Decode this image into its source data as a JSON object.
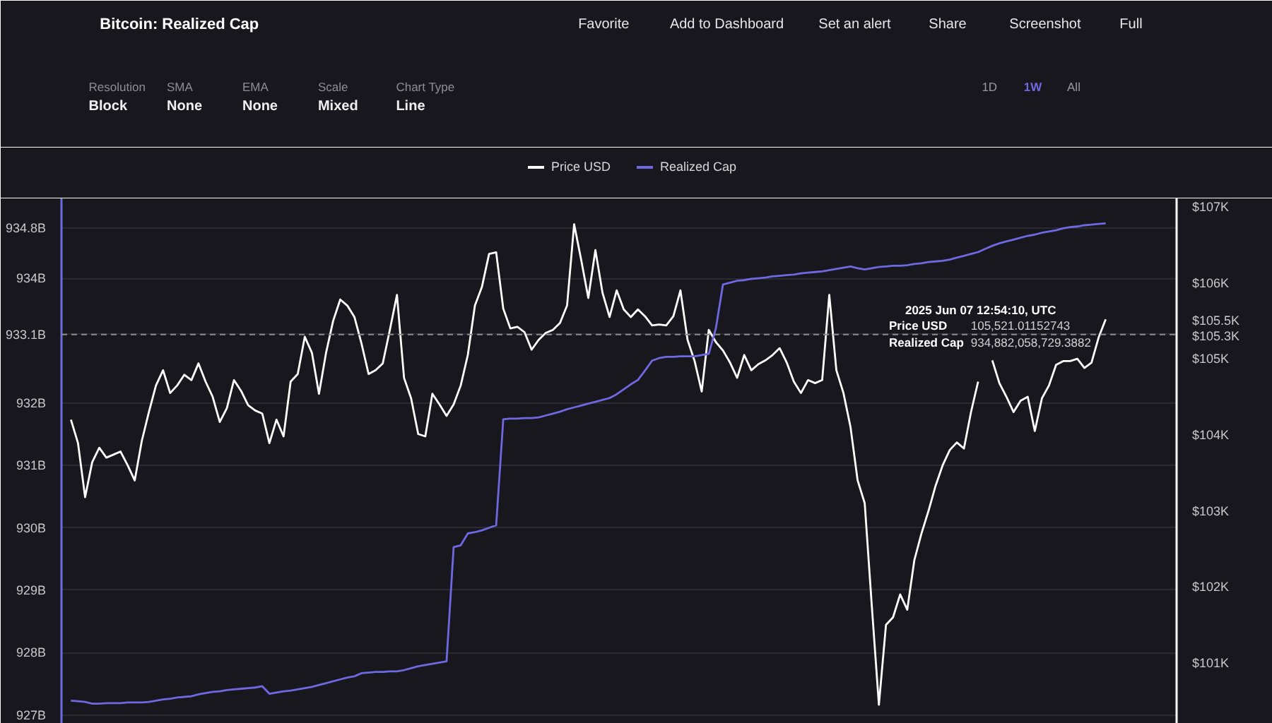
{
  "chart_data": {
    "type": "line",
    "title": "Bitcoin: Realized Cap",
    "categories": [
      null,
      null,
      null,
      null,
      null,
      null,
      null,
      null,
      null,
      null,
      null,
      null,
      null,
      null,
      null,
      null,
      null,
      null,
      null,
      null,
      null,
      null,
      null,
      null,
      null,
      null,
      null,
      null,
      null,
      null,
      null,
      null,
      null,
      null,
      null,
      null,
      null,
      null,
      null,
      null,
      null,
      null,
      null,
      null,
      null,
      null,
      null,
      null,
      null,
      null,
      null,
      null,
      null,
      null,
      null,
      null,
      null,
      null,
      null,
      null,
      null,
      null,
      null,
      null,
      null,
      null,
      null,
      null,
      null,
      null,
      null,
      null,
      null,
      null,
      null,
      null,
      null,
      null,
      null,
      null,
      null,
      null,
      null,
      null,
      null,
      null,
      null,
      null,
      null,
      null,
      null,
      null,
      null,
      null,
      null,
      null,
      null,
      null,
      null,
      null,
      null,
      null,
      null,
      null,
      null,
      null,
      null,
      null,
      null,
      null,
      null,
      null,
      null,
      null,
      null,
      null,
      null,
      null,
      null,
      null,
      null,
      null,
      null,
      null,
      null,
      null,
      null,
      null,
      null,
      null,
      null,
      null,
      null,
      null,
      null,
      null,
      null,
      null,
      null,
      null,
      null,
      null,
      null,
      null,
      null,
      null,
      null
    ],
    "series": [
      {
        "name": "Price USD",
        "color": "#ffffff",
        "axis": "y2",
        "values": [
          104.2,
          103.89,
          103.18,
          103.64,
          103.83,
          103.7,
          103.74,
          103.78,
          103.6,
          103.4,
          103.92,
          104.3,
          104.65,
          104.85,
          104.55,
          104.65,
          104.79,
          104.72,
          104.94,
          104.7,
          104.5,
          104.17,
          104.35,
          104.72,
          104.58,
          104.39,
          104.32,
          104.28,
          103.89,
          104.2,
          103.98,
          104.7,
          104.8,
          105.29,
          105.08,
          104.54,
          105.08,
          105.5,
          105.78,
          105.7,
          105.55,
          105.2,
          104.8,
          104.85,
          104.94,
          105.38,
          105.84,
          104.75,
          104.48,
          104.01,
          103.98,
          104.54,
          104.4,
          104.25,
          104.4,
          104.65,
          105.05,
          105.7,
          105.95,
          106.38,
          106.4,
          105.66,
          105.4,
          105.42,
          105.35,
          105.12,
          105.25,
          105.34,
          105.38,
          105.47,
          105.7,
          106.77,
          106.3,
          105.8,
          106.43,
          105.87,
          105.55,
          105.9,
          105.65,
          105.55,
          105.65,
          105.56,
          105.44,
          105.45,
          105.44,
          105.56,
          105.9,
          105.25,
          104.97,
          104.57,
          105.38,
          105.22,
          105.11,
          104.95,
          104.75,
          105.05,
          104.85,
          104.93,
          104.98,
          105.05,
          105.14,
          104.95,
          104.7,
          104.55,
          104.72,
          104.68,
          104.72,
          105.84,
          104.85,
          104.55,
          104.1,
          103.4,
          103.1,
          101.75,
          100.45,
          101.5,
          101.6,
          101.9,
          101.7,
          102.35,
          102.7,
          103.0,
          103.33,
          103.6,
          103.8,
          103.9,
          103.82,
          104.3,
          104.7,
          null,
          104.98,
          104.68,
          104.5,
          104.3,
          104.45,
          104.5,
          104.05,
          104.48,
          104.65,
          104.92,
          104.97,
          104.97,
          105.0,
          104.88,
          104.95,
          105.28,
          105.52
        ]
      },
      {
        "name": "Realized Cap",
        "color": "#7068e0",
        "values": [
          927.23,
          927.22,
          927.21,
          927.18,
          927.18,
          927.19,
          927.19,
          927.19,
          927.2,
          927.2,
          927.2,
          927.21,
          927.23,
          927.25,
          927.26,
          927.28,
          927.29,
          927.3,
          927.33,
          927.35,
          927.37,
          927.38,
          927.4,
          927.41,
          927.42,
          927.43,
          927.44,
          927.46,
          927.34,
          927.36,
          927.38,
          927.39,
          927.41,
          927.43,
          927.45,
          927.48,
          927.51,
          927.54,
          927.57,
          927.6,
          927.62,
          927.67,
          927.68,
          927.69,
          927.69,
          927.7,
          927.7,
          927.72,
          927.75,
          927.78,
          927.8,
          927.82,
          927.84,
          927.86,
          929.69,
          929.72,
          929.91,
          929.93,
          929.96,
          930.0,
          930.04,
          931.74,
          931.75,
          931.75,
          931.76,
          931.76,
          931.77,
          931.8,
          931.83,
          931.86,
          931.9,
          931.93,
          931.96,
          931.99,
          932.02,
          932.05,
          932.08,
          932.14,
          932.22,
          932.3,
          932.37,
          932.52,
          932.68,
          932.72,
          932.74,
          932.74,
          932.75,
          932.75,
          932.75,
          932.77,
          932.79,
          933.2,
          933.9,
          933.93,
          933.96,
          933.97,
          933.99,
          934.0,
          934.01,
          934.03,
          934.04,
          934.05,
          934.06,
          934.08,
          934.09,
          934.1,
          934.11,
          934.13,
          934.15,
          934.17,
          934.19,
          934.16,
          934.14,
          934.16,
          934.18,
          934.19,
          934.2,
          934.2,
          934.21,
          934.23,
          934.24,
          934.26,
          934.27,
          934.28,
          934.3,
          934.33,
          934.36,
          934.39,
          934.42,
          934.47,
          934.52,
          934.56,
          934.59,
          934.62,
          934.65,
          934.68,
          934.7,
          934.73,
          934.75,
          934.77,
          934.8,
          934.82,
          934.83,
          934.85,
          934.86,
          934.87,
          934.88
        ]
      }
    ],
    "ylim": [
      926.86,
      935.28
    ],
    "yticks": [
      {
        "value": 927,
        "label": "927B"
      },
      {
        "value": 928,
        "label": "928B"
      },
      {
        "value": 929,
        "label": "929B"
      },
      {
        "value": 930,
        "label": "930B"
      },
      {
        "value": 931,
        "label": "931B"
      },
      {
        "value": 932,
        "label": "932B"
      },
      {
        "value": 933.1,
        "label": "933.1B"
      },
      {
        "value": 934,
        "label": "934B"
      },
      {
        "value": 934.8,
        "label": "934.8B"
      }
    ],
    "y2lim": [
      100.2,
      107.11
    ],
    "y2ticks": [
      {
        "value": 101,
        "label": "$101K"
      },
      {
        "value": 102,
        "label": "$102K"
      },
      {
        "value": 103,
        "label": "$103K"
      },
      {
        "value": 104,
        "label": "$104K"
      },
      {
        "value": 105,
        "label": "$105K"
      },
      {
        "value": 105.3,
        "label": "$105.3K"
      },
      {
        "value": 105.5,
        "label": "$105.5K"
      },
      {
        "value": 106,
        "label": "$106K"
      },
      {
        "value": 107,
        "label": "$107K"
      }
    ],
    "ref_lines": [
      {
        "axis": "y",
        "value": 933.1,
        "line_style": "dashed",
        "color": "#8c8c8c"
      }
    ],
    "grid": "y",
    "legend": "top",
    "annotations": [
      "Favorite",
      "Add to Dashboard",
      "Set an alert",
      "Share",
      "Screenshot",
      "Full",
      "Resolution",
      "Block",
      "SMA",
      "None",
      "EMA",
      "None",
      "Scale",
      "Mixed",
      "Chart Type",
      "Line",
      "1D",
      "1W",
      "All",
      "2025 Jun 07 12:54:10, UTC",
      "Price USD",
      "105,521.01152743",
      "Realized Cap",
      "934,882,058,729.3882"
    ]
  }
}
